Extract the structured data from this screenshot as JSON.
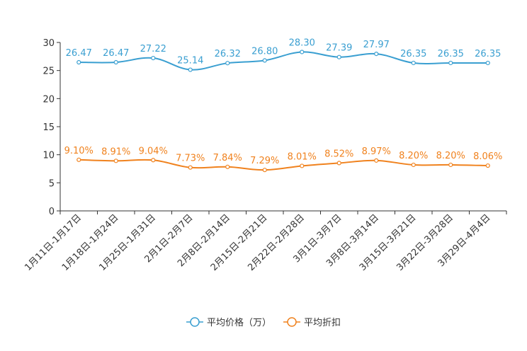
{
  "chart_data": {
    "type": "line",
    "title": "",
    "xlabel": "",
    "ylabel": "",
    "ylim": [
      0,
      30
    ],
    "yticks": [
      0,
      5,
      10,
      15,
      20,
      25,
      30
    ],
    "categories": [
      "1月11日-1月17日",
      "1月18日-1月24日",
      "1月25日-1月31日",
      "2月1日-2月7日",
      "2月8日-2月14日",
      "2月15日-2月21日",
      "2月22日-2月28日",
      "3月1日-3月7日",
      "3月8日-3月14日",
      "3月15日-3月21日",
      "3月22日-3月28日",
      "3月29日-4月4日"
    ],
    "series": [
      {
        "name": "平均价格（万）",
        "color": "#3a9fd1",
        "values": [
          26.47,
          26.47,
          27.22,
          25.14,
          26.32,
          26.8,
          28.3,
          27.39,
          27.97,
          26.35,
          26.35,
          26.35
        ],
        "labels": [
          "26.47",
          "26.47",
          "27.22",
          "25.14",
          "26.32",
          "26.80",
          "28.30",
          "27.39",
          "27.97",
          "26.35",
          "26.35",
          "26.35"
        ]
      },
      {
        "name": "平均折扣",
        "color": "#f0821e",
        "values": [
          9.1,
          8.91,
          9.04,
          7.73,
          7.84,
          7.29,
          8.01,
          8.52,
          8.97,
          8.2,
          8.2,
          8.06
        ],
        "labels": [
          "9.10%",
          "8.91%",
          "9.04%",
          "7.73%",
          "7.84%",
          "7.29%",
          "8.01%",
          "8.52%",
          "8.97%",
          "8.20%",
          "8.20%",
          "8.06%"
        ]
      }
    ],
    "legend_position": "bottom-center"
  }
}
